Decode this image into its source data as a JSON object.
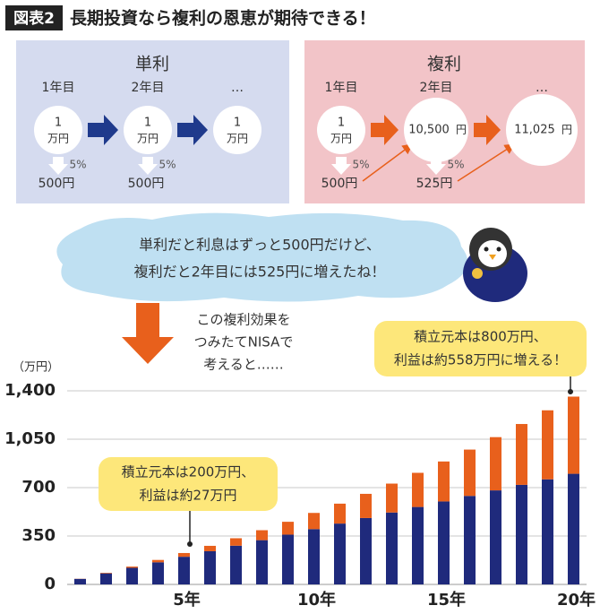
{
  "header": {
    "badge": "図表2",
    "title": "長期投資なら複利の恩恵が期待できる！"
  },
  "simple": {
    "title": "単利",
    "years": [
      "1年目",
      "2年目",
      "…"
    ],
    "circles": [
      [
        "1",
        "万円"
      ],
      [
        "1",
        "万円"
      ],
      [
        "1",
        "万円"
      ]
    ],
    "rates": [
      "5%",
      "5%"
    ],
    "interest": [
      "500円",
      "500円"
    ]
  },
  "compound": {
    "title": "複利",
    "years": [
      "1年目",
      "2年目",
      "…"
    ],
    "circles": [
      [
        "1",
        "万円"
      ],
      [
        "10,500",
        "円"
      ],
      [
        "11,025",
        "円"
      ]
    ],
    "rates": [
      "5%",
      "5%"
    ],
    "interest": [
      "500円",
      "525円"
    ]
  },
  "bubble": [
    "単利だと利息はずっと500円だけど、",
    "複利だと2年目には525円に増えたね！"
  ],
  "note": [
    "この複利効果を",
    "つみたてNISAで",
    "考えると……"
  ],
  "callouts": [
    [
      "積立元本は200万円、",
      "利益は約27万円"
    ],
    [
      "積立元本は800万円、",
      "利益は約558万円に増える！"
    ]
  ],
  "chart_data": {
    "type": "bar",
    "stacked": true,
    "y_unit": "（万円）",
    "categories": [
      null,
      null,
      null,
      null,
      "5年",
      null,
      null,
      null,
      null,
      "10年",
      null,
      null,
      null,
      null,
      "15年",
      null,
      null,
      null,
      null,
      "20年"
    ],
    "series": [
      {
        "color": "#1f2a7c",
        "values": [
          40,
          80,
          120,
          160,
          200,
          240,
          280,
          320,
          360,
          400,
          440,
          480,
          520,
          560,
          600,
          640,
          680,
          720,
          760,
          800
        ]
      },
      {
        "color": "#e8601c",
        "values": [
          1,
          4,
          9,
          17,
          27,
          39,
          54,
          72,
          93,
          117,
          144,
          175,
          209,
          247,
          289,
          335,
          385,
          440,
          499,
          558
        ]
      }
    ],
    "ylim": [
      0,
      1400
    ],
    "yticks": [
      0,
      350,
      700,
      {
        "value": 1050,
        "label": "1,050"
      },
      {
        "value": 1400,
        "label": "1,400"
      }
    ],
    "grid": true
  }
}
